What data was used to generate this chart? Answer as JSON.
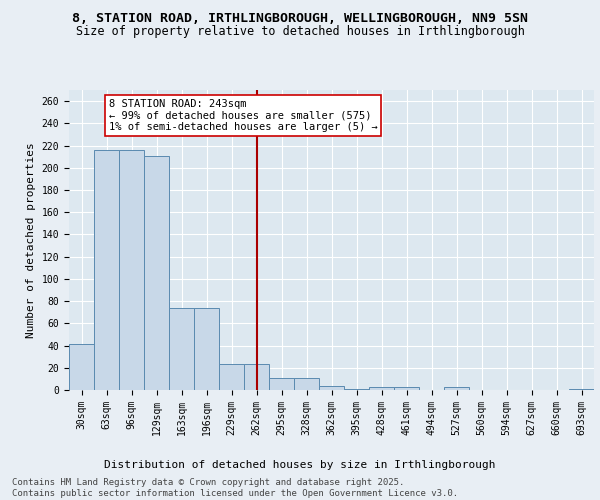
{
  "title_line1": "8, STATION ROAD, IRTHLINGBOROUGH, WELLINGBOROUGH, NN9 5SN",
  "title_line2": "Size of property relative to detached houses in Irthlingborough",
  "xlabel": "Distribution of detached houses by size in Irthlingborough",
  "ylabel": "Number of detached properties",
  "footer_line1": "Contains HM Land Registry data © Crown copyright and database right 2025.",
  "footer_line2": "Contains public sector information licensed under the Open Government Licence v3.0.",
  "bin_labels": [
    "30sqm",
    "63sqm",
    "96sqm",
    "129sqm",
    "163sqm",
    "196sqm",
    "229sqm",
    "262sqm",
    "295sqm",
    "328sqm",
    "362sqm",
    "395sqm",
    "428sqm",
    "461sqm",
    "494sqm",
    "527sqm",
    "560sqm",
    "594sqm",
    "627sqm",
    "660sqm",
    "693sqm"
  ],
  "bar_heights": [
    41,
    216,
    211,
    74,
    23,
    11,
    4,
    1,
    3,
    3,
    3,
    1
  ],
  "heights_full": [
    41,
    216,
    216,
    211,
    74,
    74,
    23,
    23,
    11,
    11,
    4,
    1,
    3,
    3,
    0,
    3,
    0,
    0,
    0,
    0,
    1
  ],
  "bar_color": "#c8d8e8",
  "bar_edge_color": "#5a8ab0",
  "vline_color": "#aa0000",
  "annotation_text": "8 STATION ROAD: 243sqm\n← 99% of detached houses are smaller (575)\n1% of semi-detached houses are larger (5) →",
  "annotation_box_color": "#ffffff",
  "annotation_box_edge": "#cc0000",
  "ylim": [
    0,
    270
  ],
  "yticks": [
    0,
    20,
    40,
    60,
    80,
    100,
    120,
    140,
    160,
    180,
    200,
    220,
    240,
    260
  ],
  "plot_bg": "#dde8f0",
  "fig_bg": "#e8eef4",
  "grid_color": "#ffffff",
  "title_fontsize": 9.5,
  "subtitle_fontsize": 8.5,
  "axis_label_fontsize": 8,
  "tick_fontsize": 7,
  "footer_fontsize": 6.5,
  "annot_fontsize": 7.5
}
